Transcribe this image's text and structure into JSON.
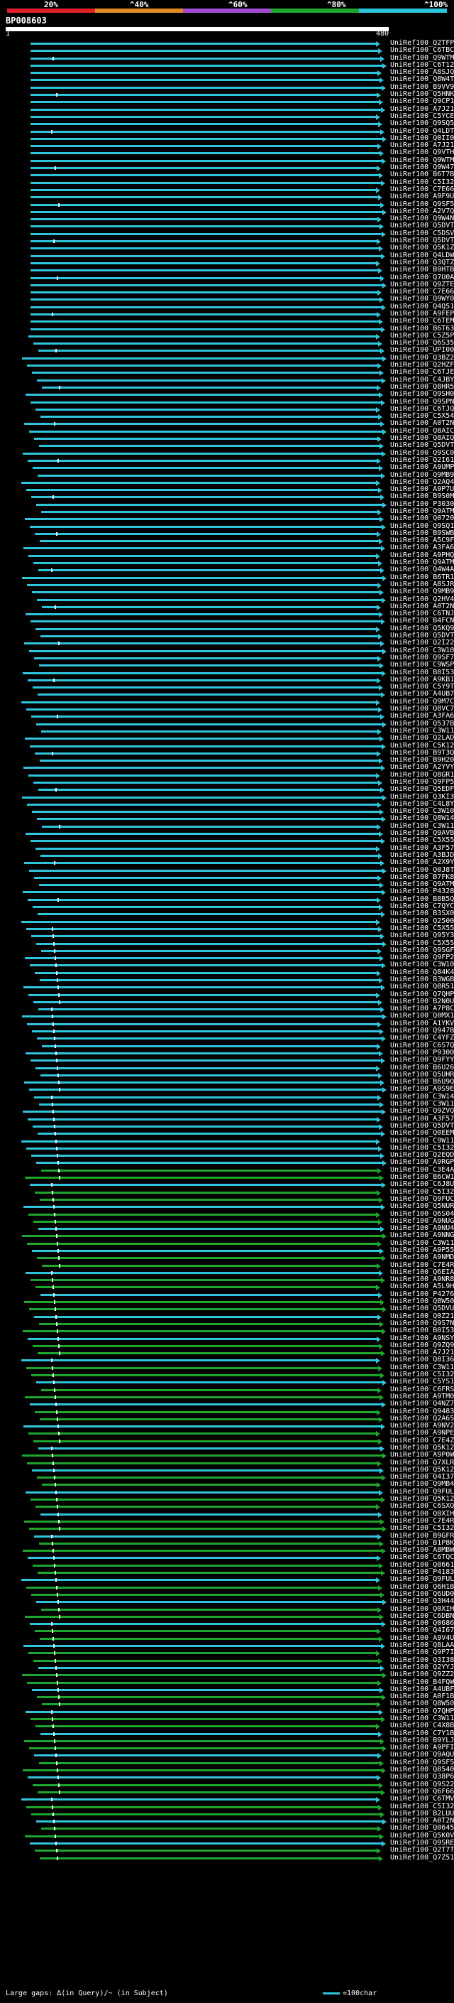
{
  "scale": {
    "labels": [
      "20%",
      "^40%",
      "^60%",
      "^80%",
      "^100%"
    ],
    "colors": [
      "#e0202a",
      "#e08a20",
      "#a34bd3",
      "#1da52c",
      "#2ec4dc"
    ]
  },
  "query": {
    "id": "BP008603",
    "start": "1",
    "end": "480"
  },
  "footer": {
    "text": "Large gaps: ∆(in Query)/~ (in Subject)",
    "legend": "=100char"
  },
  "hits": [
    "UniRef100_Q2TFP3",
    "UniRef100_C6TBC3",
    "UniRef100_Q9WTM4",
    "UniRef100_C6T129",
    "UniRef100_A8SJQ3",
    "UniRef100_Q8W4T0",
    "UniRef100_B9VV95",
    "UniRef100_Q5HNK1",
    "UniRef100_Q9CP18",
    "UniRef100_A7J211",
    "UniRef100_C5YCE6",
    "UniRef100_Q9SQ58",
    "UniRef100_Q4LDT4",
    "UniRef100_Q0II03",
    "UniRef100_A7J212",
    "UniRef100_Q9VTH7",
    "UniRef100_Q9WTM6",
    "UniRef100_Q9W470",
    "UniRef100_B6T7B8",
    "UniRef100_C5I323",
    "UniRef100_C7E662",
    "UniRef100_A9F9U0",
    "UniRef100_Q9SF58",
    "UniRef100_A2V7Q8",
    "UniRef100_Q9W4N3",
    "UniRef100_Q5DVT7",
    "UniRef100_C5DSV1",
    "UniRef100_Q5DVT9",
    "UniRef100_Q5K1Z0",
    "UniRef100_Q4LDW9",
    "UniRef100_Q3QTZ2",
    "UniRef100_B9HTB7",
    "UniRef100_Q7U0A6",
    "UniRef100_Q9ZTE3",
    "UniRef100_C7E661",
    "UniRef100_Q9WY05",
    "UniRef100_Q4Q517",
    "UniRef100_A9FEP4",
    "UniRef100_C6TEM7",
    "UniRef100_B6T634",
    "UniRef100_C5Z5P7",
    "UniRef100_Q6S357",
    "UniRef100_UPI000...",
    "UniRef100_Q3BZ22",
    "UniRef100_Q2HZF5",
    "UniRef100_C6TJE4",
    "UniRef100_C4JBY9",
    "UniRef100_Q8HR52",
    "UniRef100_Q9SH07",
    "UniRef100_Q9SPN9",
    "UniRef100_C6TJQ0",
    "UniRef100_C5X548",
    "UniRef100_A0T2N7",
    "UniRef100_Q8AIC7",
    "UniRef100_Q8AIQ6",
    "UniRef100_Q5DVT8",
    "UniRef100_Q9SC02",
    "UniRef100_Q2I617",
    "UniRef100_A9UMP4",
    "UniRef100_Q9MB98",
    "UniRef100_Q2AQ49",
    "UniRef100_A9P7U3",
    "UniRef100_B9S0M0",
    "UniRef100_P30302",
    "UniRef100_Q9ATM5",
    "UniRef100_Q07204",
    "UniRef100_Q9SQ14",
    "UniRef100_B9SWB1",
    "UniRef100_A5C9F9",
    "UniRef100_A3FA69",
    "UniRef100_A9PHQ2",
    "UniRef100_Q9ATM0",
    "UniRef100_Q4W4A1",
    "UniRef100_B6TR18",
    "UniRef100_A8SJR3",
    "UniRef100_Q9MB99",
    "UniRef100_Q2HV44",
    "UniRef100_A0T2N8",
    "UniRef100_C6TNJ1",
    "UniRef100_B4FCN0",
    "UniRef100_Q5KQ96",
    "UniRef100_Q5DVT6",
    "UniRef100_Q2I22Z",
    "UniRef100_C3W109",
    "UniRef100_Q9SF74",
    "UniRef100_C9WSP8",
    "UniRef100_B0I532",
    "UniRef100_A9KB14",
    "UniRef100_C5Y9T3",
    "UniRef100_A4UB73",
    "UniRef100_Q9M7C4",
    "UniRef100_Q8VC75",
    "UniRef100_A3FA68",
    "UniRef100_Q537B9",
    "UniRef100_C3W110",
    "UniRef100_Q2LAD9",
    "UniRef100_C5K121",
    "UniRef100_B9T3Q7",
    "UniRef100_B9H203",
    "UniRef100_A2YVY3",
    "UniRef100_Q8GR18",
    "UniRef100_Q9FP53",
    "UniRef100_Q5EDF9",
    "UniRef100_Q3KI39",
    "UniRef100_C4L8Y7",
    "UniRef100_C3W108",
    "UniRef100_Q8W146",
    "UniRef100_C3W111",
    "UniRef100_Q9AVB3",
    "UniRef100_C5X552",
    "UniRef100_A3F571",
    "UniRef100_A3BJD6",
    "UniRef100_A2X9Y0",
    "UniRef100_Q0J8T0",
    "UniRef100_B7FK88",
    "UniRef100_Q9ATM5",
    "UniRef100_P43286",
    "UniRef100_B8B5Q0",
    "UniRef100_C7QYC5",
    "UniRef100_B3SX05",
    "UniRef100_Q25007",
    "UniRef100_C5X550",
    "UniRef100_Q95Y31",
    "UniRef100_C5X555",
    "UniRef100_Q9SGF3",
    "UniRef100_Q9FP27",
    "UniRef100_C3W106",
    "UniRef100_Q84K49",
    "UniRef100_B3WGB4",
    "UniRef100_Q0R512",
    "UniRef100_Q7QHP3",
    "UniRef100_B2N0U5",
    "UniRef100_A7P8C9",
    "UniRef100_Q0MX13",
    "UniRef100_A1YKV9",
    "UniRef100_Q947B0",
    "UniRef100_C4YFZ4",
    "UniRef100_C6S7Q2",
    "UniRef100_P93004",
    "UniRef100_Q9FYY7",
    "UniRef100_B6U266",
    "UniRef100_Q5UHR1",
    "UniRef100_B6U9Q4",
    "UniRef100_A9S9E7",
    "UniRef100_C3W144",
    "UniRef100_C3W116",
    "UniRef100_Q9ZVQ7",
    "UniRef100_A3F570",
    "UniRef100_Q5DVT5",
    "UniRef100_Q0EEM0",
    "UniRef100_C9W115",
    "UniRef100_C5I324",
    "UniRef100_Q2EQD3",
    "UniRef100_A9RGP1",
    "UniRef100_C3E4A9",
    "UniRef100_B6CW14",
    "UniRef100_C6J8U4",
    "UniRef100_C5I325",
    "UniRef100_Q9FUC0",
    "UniRef100_Q5NUR8",
    "UniRef100_Q6S045",
    "UniRef100_A9NUG2",
    "UniRef100_A9NU45",
    "UniRef100_A9NNG2",
    "UniRef100_C3W113",
    "UniRef100_A9P556",
    "UniRef100_A9NMD5",
    "UniRef100_C7E4R6",
    "UniRef100_Q6EIA8",
    "UniRef100_A9NR85",
    "UniRef100_A5L9H4",
    "UniRef100_P42767",
    "UniRef100_Q8W506",
    "UniRef100_Q5DVU0",
    "UniRef100_Q0Z212",
    "UniRef100_Q9S7N8",
    "UniRef100_B0I531",
    "UniRef100_A9NSY9",
    "UniRef100_Q9ZQ98",
    "UniRef100_A7J213",
    "UniRef100_Q8I368",
    "UniRef100_C3W114",
    "UniRef100_C5I322",
    "UniRef100_C5YS13",
    "UniRef100_C6FRS0",
    "UniRef100_A9TM03",
    "UniRef100_Q4NZ73",
    "UniRef100_Q9483J",
    "UniRef100_Q2A650",
    "UniRef100_A9NV23",
    "UniRef100_A9NPE3",
    "UniRef100_C7E4Z3",
    "UniRef100_Q5K124",
    "UniRef100_A9P0W1",
    "UniRef100_Q7XLR1",
    "UniRef100_Q5K123",
    "UniRef100_Q4I372",
    "UniRef100_Q9MB40",
    "UniRef100_Q9FUL1",
    "UniRef100_Q5K126",
    "UniRef100_C6SXQ7",
    "UniRef100_Q0XIH5",
    "UniRef100_C7E4R4",
    "UniRef100_C5I326",
    "UniRef100_B9GFR9",
    "UniRef100_B1P8K2",
    "UniRef100_A8MBWL",
    "UniRef100_C6TQC0",
    "UniRef100_Q06611",
    "UniRef100_P41837",
    "UniRef100_Q9FUL0",
    "UniRef100_Q6H1B0",
    "UniRef100_Q6UD03",
    "UniRef100_Q3H440",
    "UniRef100_Q0XIH4",
    "UniRef100_C6DBN4",
    "UniRef100_Q06862",
    "UniRef100_Q4I671",
    "UniRef100_A9V4U3",
    "UniRef100_Q8LAA6",
    "UniRef100_Q9P7I3",
    "UniRef100_Q3I383",
    "UniRef100_Q2YYJ6",
    "UniRef100_Q9ZZ29",
    "UniRef100_B4FQW8",
    "UniRef100_A4UBF3",
    "UniRef100_A0F1B9",
    "UniRef100_Q8W507",
    "UniRef100_Q7QHP4",
    "UniRef100_C3W119",
    "UniRef100_C4X8B9",
    "UniRef100_C7Y1B9",
    "UniRef100_B9YLJ7",
    "UniRef100_A9PFI3",
    "UniRef100_Q9AQU5",
    "UniRef100_Q9SF59",
    "UniRef100_Q85404",
    "UniRef100_Q38P68",
    "UniRef100_Q9S223",
    "UniRef100_Q6F667",
    "UniRef100_C6TMV4",
    "UniRef100_C5I320",
    "UniRef100_B2LUU8",
    "UniRef100_A0T2N6",
    "UniRef100_Q06451",
    "UniRef100_Q5K0V0",
    "UniRef100_Q9SRE7",
    "UniRef100_Q2T7T0",
    "UniRef100_Q7Z510"
  ]
}
